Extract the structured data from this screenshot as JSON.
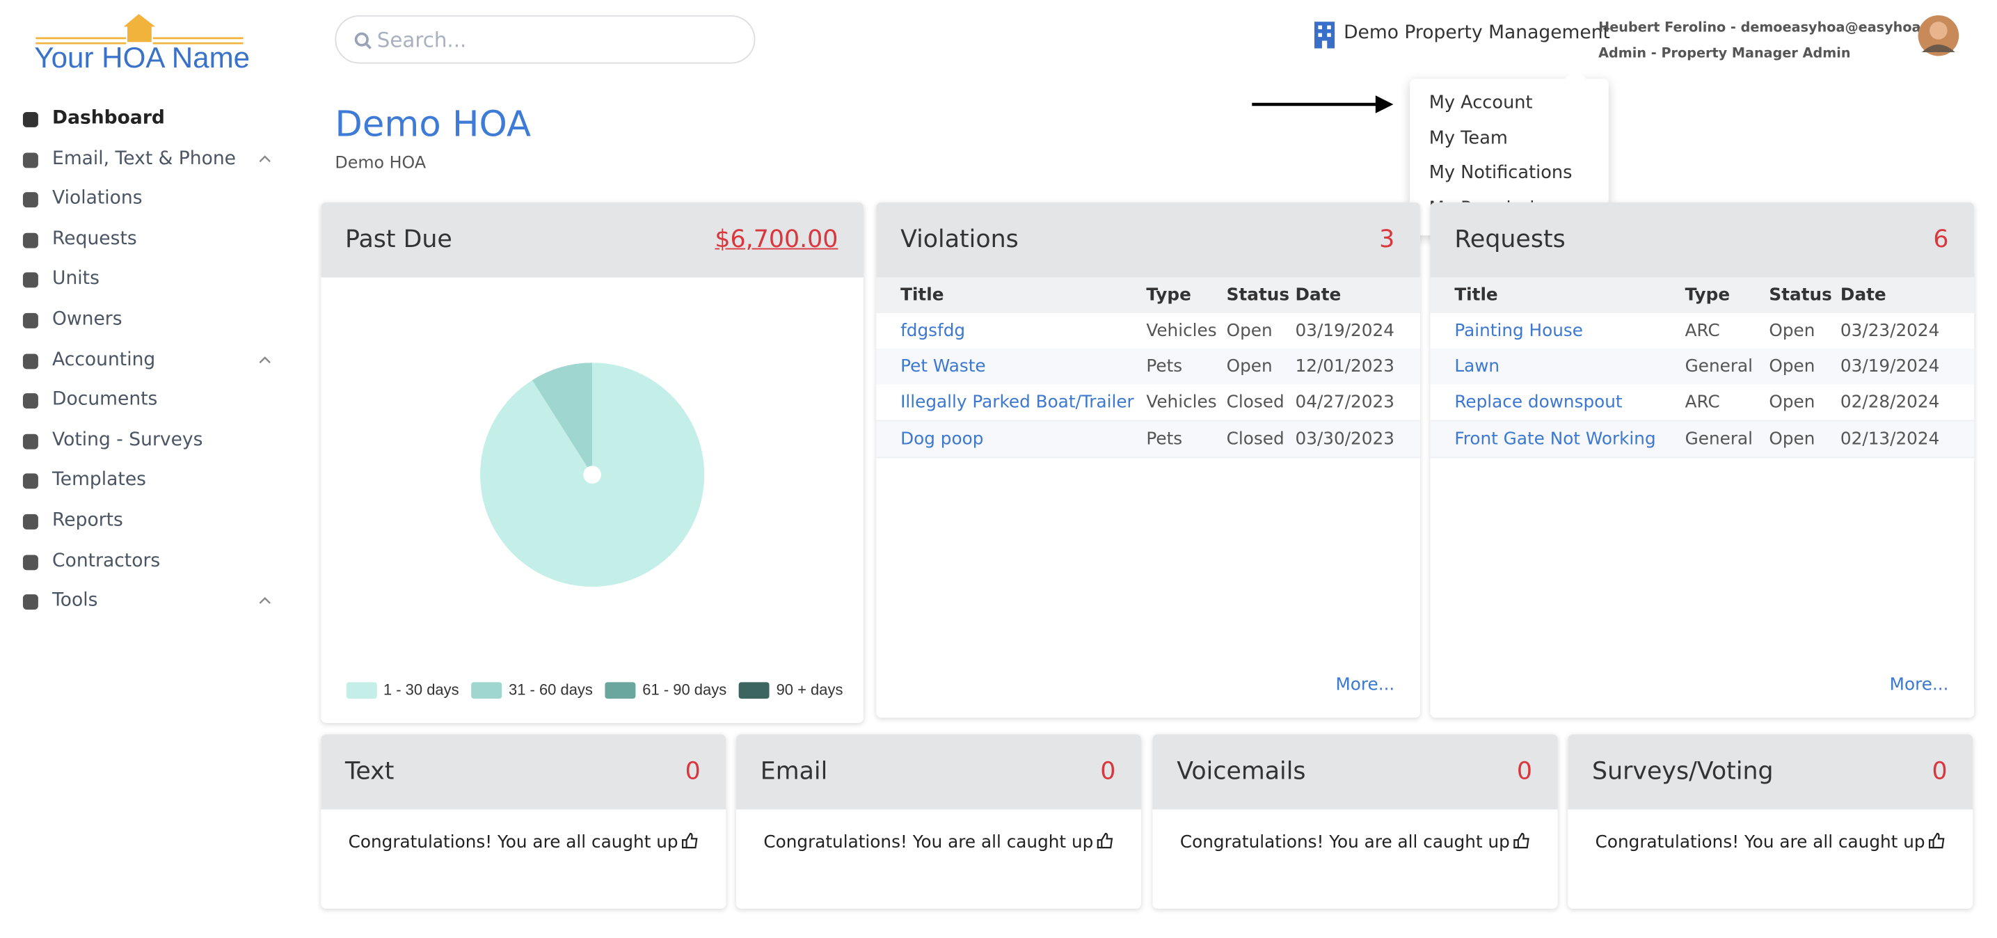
{
  "logo": "Your HOA Name",
  "nav": [
    {
      "label": "Dashboard",
      "active": true,
      "expandable": false
    },
    {
      "label": "Email, Text & Phone",
      "active": false,
      "expandable": true
    },
    {
      "label": "Violations",
      "active": false,
      "expandable": false
    },
    {
      "label": "Requests",
      "active": false,
      "expandable": false
    },
    {
      "label": "Units",
      "active": false,
      "expandable": false
    },
    {
      "label": "Owners",
      "active": false,
      "expandable": false
    },
    {
      "label": "Accounting",
      "active": false,
      "expandable": true
    },
    {
      "label": "Documents",
      "active": false,
      "expandable": false
    },
    {
      "label": "Voting - Surveys",
      "active": false,
      "expandable": false
    },
    {
      "label": "Templates",
      "active": false,
      "expandable": false
    },
    {
      "label": "Reports",
      "active": false,
      "expandable": false
    },
    {
      "label": "Contractors",
      "active": false,
      "expandable": false
    },
    {
      "label": "Tools",
      "active": false,
      "expandable": true
    }
  ],
  "search_placeholder": "Search...",
  "company": "Demo Property Management",
  "user": {
    "name_email": "Heubert Ferolino - demoeasyhoa@easyhoa.com",
    "role": "Admin - Property Manager Admin"
  },
  "user_menu": [
    "My Account",
    "My Team",
    "My Notifications",
    "My Permissions"
  ],
  "page": {
    "title": "Demo HOA",
    "subtitle": "Demo HOA"
  },
  "past_due": {
    "title": "Past Due",
    "amount": "$6,700.00"
  },
  "chart_data": {
    "type": "pie",
    "categories": [
      "1 - 30 days",
      "31 - 60 days",
      "61 - 90 days",
      "90 + days"
    ],
    "values": [
      91,
      9,
      0,
      0
    ],
    "colors": [
      "#c3efe8",
      "#9fd6cf",
      "#6aa59e",
      "#3d6560"
    ]
  },
  "lists": [
    {
      "title": "Violations",
      "count": 3,
      "columns": [
        "Title",
        "Type",
        "Status",
        "Date"
      ],
      "rows": [
        [
          "fdgsfdg",
          "Vehicles",
          "Open",
          "03/19/2024"
        ],
        [
          "Pet Waste",
          "Pets",
          "Open",
          "12/01/2023"
        ],
        [
          "Illegally Parked Boat/Trailer",
          "Vehicles",
          "Closed",
          "04/27/2023"
        ],
        [
          "Dog poop",
          "Pets",
          "Closed",
          "03/30/2023"
        ]
      ],
      "more": "More..."
    },
    {
      "title": "Requests",
      "count": 6,
      "columns": [
        "Title",
        "Type",
        "Status",
        "Date"
      ],
      "rows": [
        [
          "Painting House",
          "ARC",
          "Open",
          "03/23/2024"
        ],
        [
          "Lawn",
          "General",
          "Open",
          "03/19/2024"
        ],
        [
          "Replace downspout",
          "ARC",
          "Open",
          "02/28/2024"
        ],
        [
          "Front Gate Not Working",
          "General",
          "Open",
          "02/13/2024"
        ]
      ],
      "more": "More..."
    }
  ],
  "inbox": [
    {
      "title": "Text",
      "count": 0,
      "message": "Congratulations! You are all caught up"
    },
    {
      "title": "Email",
      "count": 0,
      "message": "Congratulations! You are all caught up"
    },
    {
      "title": "Voicemails",
      "count": 0,
      "message": "Congratulations! You are all caught up"
    },
    {
      "title": "Surveys/Voting",
      "count": 0,
      "message": "Congratulations! You are all caught up"
    }
  ]
}
